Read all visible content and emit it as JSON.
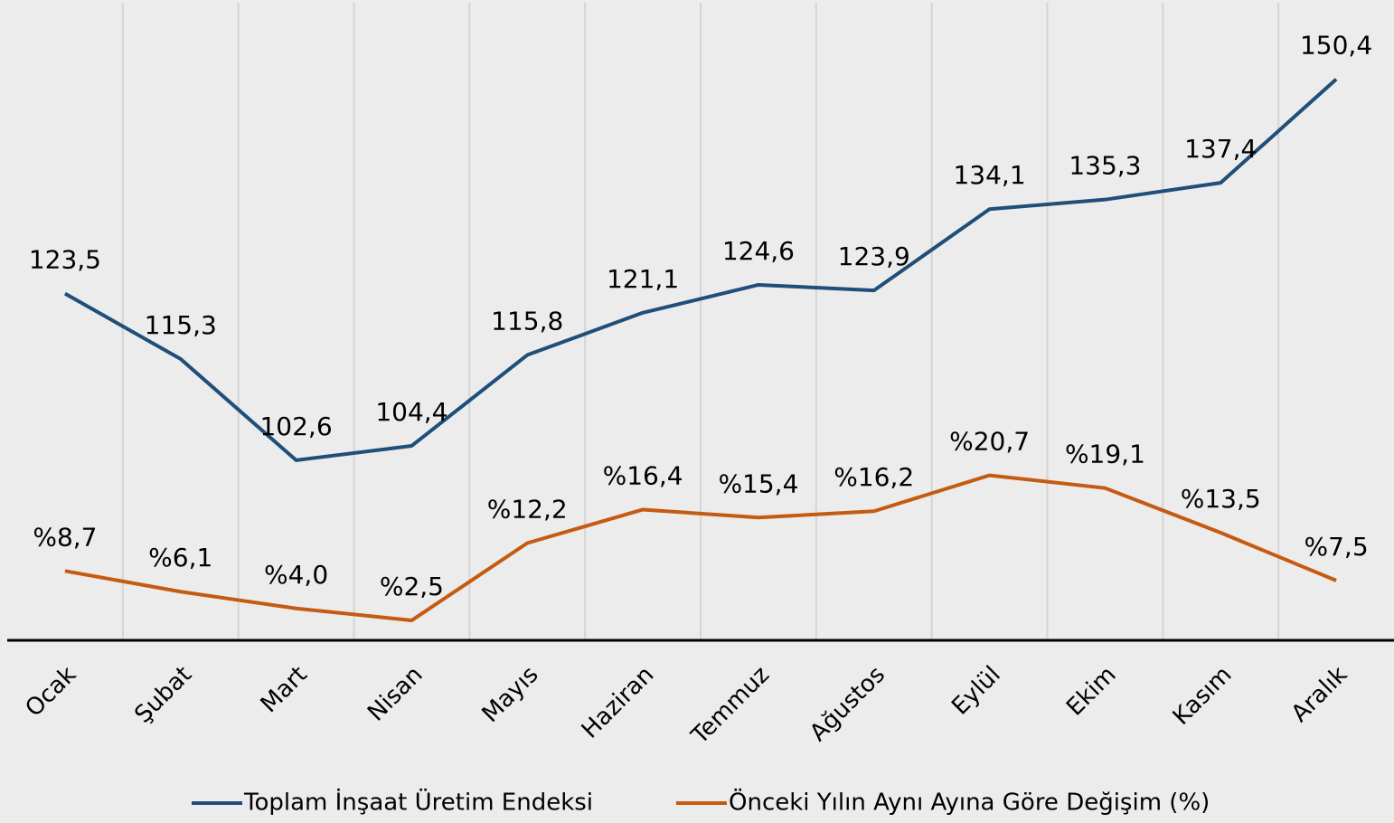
{
  "chart_data": {
    "type": "line",
    "categories": [
      "Ocak",
      "Şubat",
      "Mart",
      "Nisan",
      "Mayıs",
      "Haziran",
      "Temmuz",
      "Ağustos",
      "Eylül",
      "Ekim",
      "Kasım",
      "Aralık"
    ],
    "series": [
      {
        "name": "Toplam İnşaat Üretim Endeksi",
        "color": "#1f4e79",
        "values": [
          123.5,
          115.3,
          102.6,
          104.4,
          115.8,
          121.1,
          124.6,
          123.9,
          134.1,
          135.3,
          137.4,
          150.4
        ],
        "value_labels": [
          "123,5",
          "115,3",
          "102,6",
          "104,4",
          "115,8",
          "121,1",
          "124,6",
          "123,9",
          "134,1",
          "135,3",
          "137,4",
          "150,4"
        ]
      },
      {
        "name": "Önceki Yılın Aynı Ayına Göre Değişim (%)",
        "color": "#c55a11",
        "axis": "y2",
        "values": [
          8.7,
          6.1,
          4.0,
          2.5,
          12.2,
          16.4,
          15.4,
          16.2,
          20.7,
          19.1,
          13.5,
          7.5
        ],
        "value_labels": [
          "%8,7",
          "%6,1",
          "%4,0",
          "%2,5",
          "%12,2",
          "%16,4",
          "%15,4",
          "%16,2",
          "%20,7",
          "%19,1",
          "%13,5",
          "%7,5"
        ]
      }
    ],
    "ylim": [
      80,
      160
    ],
    "y2lim": [
      0,
      80
    ],
    "legend": "bottom"
  }
}
